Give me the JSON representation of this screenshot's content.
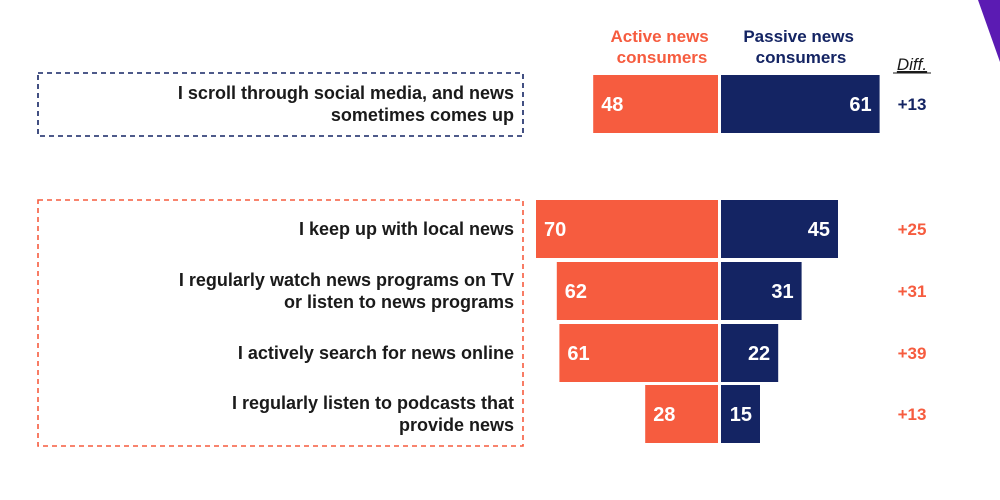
{
  "chart_data": {
    "type": "bar",
    "subtype": "diverging-horizontal",
    "colors": {
      "active": "#f65c3f",
      "passive": "#142463",
      "text": "#1a1a1a",
      "accent": "#5b1bb3"
    },
    "legend": {
      "active": [
        "Active news",
        "consumers"
      ],
      "passive": [
        "Passive news",
        "consumers"
      ],
      "diff": "Diff."
    },
    "series": [
      {
        "key": "active",
        "values": [
          48,
          70,
          62,
          61,
          28
        ]
      },
      {
        "key": "passive",
        "values": [
          61,
          45,
          31,
          22,
          15
        ]
      }
    ],
    "categories": [
      {
        "lines": [
          "I scroll through social media, and news",
          "sometimes comes up"
        ],
        "active": 48,
        "passive": 61,
        "diff": "+13",
        "group": "passive"
      },
      {
        "lines": [
          "I keep up with local news"
        ],
        "active": 70,
        "passive": 45,
        "diff": "+25",
        "group": "active"
      },
      {
        "lines": [
          "I regularly watch news programs on TV",
          "or listen to news programs"
        ],
        "active": 62,
        "passive": 31,
        "diff": "+31",
        "group": "active"
      },
      {
        "lines": [
          "I actively search for news online"
        ],
        "active": 61,
        "passive": 22,
        "diff": "+39",
        "group": "active"
      },
      {
        "lines": [
          "I regularly listen to podcasts that",
          "provide news"
        ],
        "active": 28,
        "passive": 15,
        "diff": "+13",
        "group": "active"
      }
    ]
  }
}
